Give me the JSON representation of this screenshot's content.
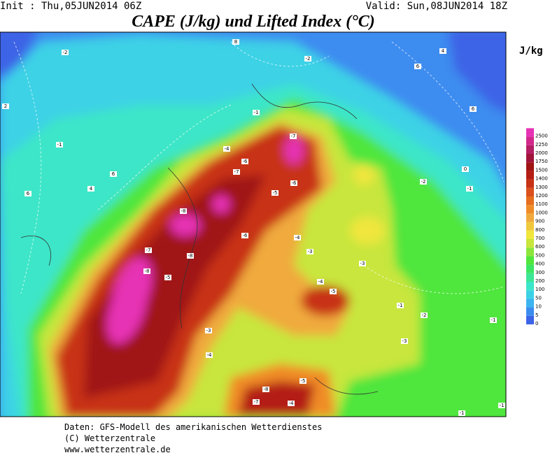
{
  "header": {
    "init": "Init : Thu,05JUN2014 06Z",
    "valid": "Valid: Sun,08JUN2014 18Z",
    "title": "CAPE (J/kg) und Lifted Index (°C)"
  },
  "colorbar": {
    "unit": "J/kg",
    "levels": [
      0,
      5,
      10,
      50,
      100,
      200,
      300,
      400,
      500,
      600,
      700,
      800,
      900,
      1000,
      1100,
      1200,
      1300,
      1400,
      1500,
      1750,
      2000,
      2250,
      2500
    ],
    "colors": [
      "#3c64e6",
      "#3c8cf0",
      "#3cb4f0",
      "#3cd2e6",
      "#3ce6c8",
      "#3ce696",
      "#3ce664",
      "#50e63c",
      "#8ce63c",
      "#c8e63c",
      "#f0e63c",
      "#f0c83c",
      "#f0aa3c",
      "#f08c28",
      "#e66e1e",
      "#dc501e",
      "#c83214",
      "#b41e14",
      "#a01414",
      "#a0143c",
      "#b41e64",
      "#d2288c",
      "#e632b4"
    ]
  },
  "map_labels": [
    "-2",
    "-1",
    "2",
    "4",
    "6",
    "6",
    "8",
    "-2",
    "6",
    "4",
    "6",
    "-1",
    "-4",
    "-6",
    "-7",
    "-7",
    "-6",
    "-5",
    "-8",
    "-8",
    "-7",
    "-8",
    "-5",
    "-6",
    "-4",
    "-3",
    "-2",
    "-1",
    "0",
    "-3",
    "-4",
    "-5",
    "-1",
    "-2",
    "-1",
    "-3",
    "-3",
    "-4",
    "-8",
    "-7",
    "-5",
    "-4",
    "-1",
    "-1"
  ],
  "footer": [
    "Daten: GFS-Modell des amerikanischen Wetterdienstes",
    "(C) Wetterzentrale",
    "www.wetterzentrale.de"
  ]
}
